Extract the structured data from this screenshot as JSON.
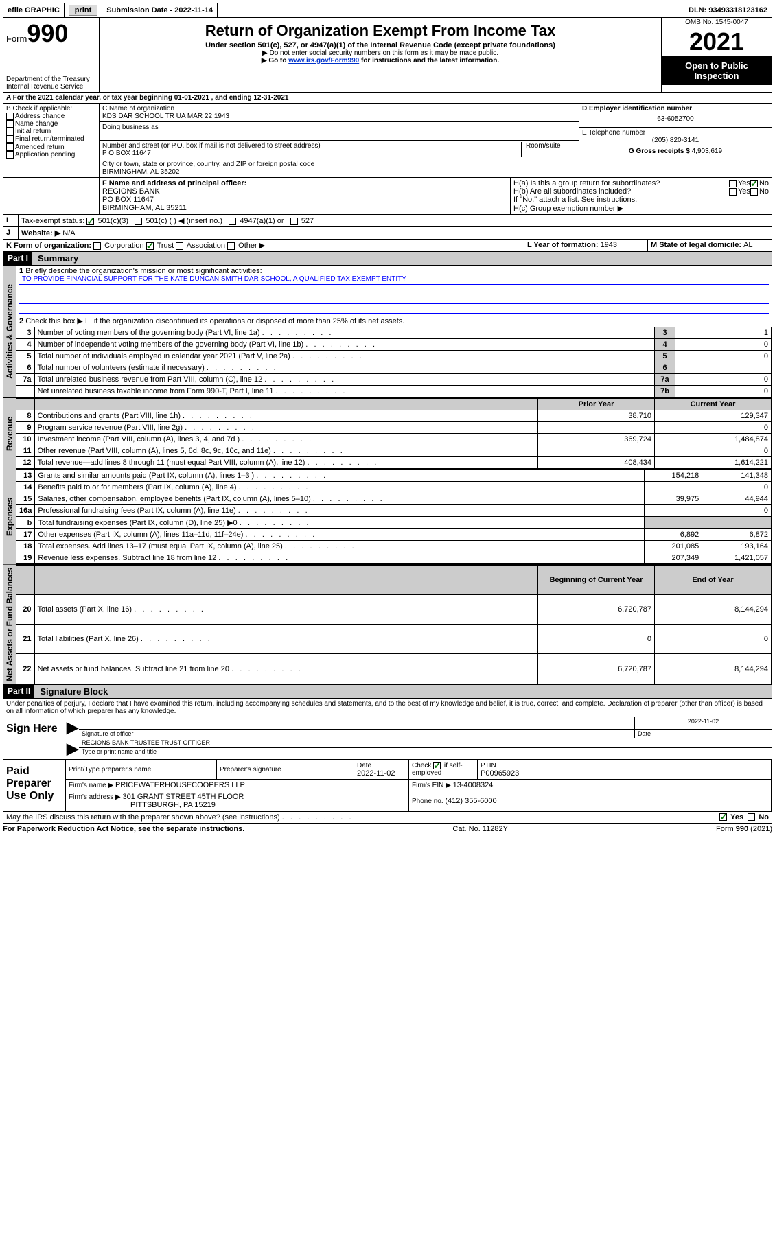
{
  "topbar": {
    "efile": "efile GRAPHIC",
    "print": "print",
    "subdate_label": "Submission Date - ",
    "subdate": "2022-11-14",
    "dln_label": "DLN: ",
    "dln": "93493318123162"
  },
  "header": {
    "form_word": "Form",
    "form_num": "990",
    "dept": "Department of the Treasury",
    "irs": "Internal Revenue Service",
    "title": "Return of Organization Exempt From Income Tax",
    "sub1": "Under section 501(c), 527, or 4947(a)(1) of the Internal Revenue Code (except private foundations)",
    "sub2": "▶ Do not enter social security numbers on this form as it may be made public.",
    "sub3a": "▶ Go to ",
    "sub3_link": "www.irs.gov/Form990",
    "sub3b": " for instructions and the latest information.",
    "omb": "OMB No. 1545-0047",
    "year": "2021",
    "open": "Open to Public Inspection"
  },
  "A": {
    "prefix": "A For the 2021 calendar year, or tax year beginning ",
    "begin": "01-01-2021",
    "mid": " , and ending ",
    "end": "12-31-2021"
  },
  "B": {
    "label": "B Check if applicable:",
    "items": [
      "Address change",
      "Name change",
      "Initial return",
      "Final return/terminated",
      "Amended return",
      "Application pending"
    ]
  },
  "C": {
    "name_label": "C Name of organization",
    "name": "KDS DAR SCHOOL TR UA MAR 22 1943",
    "dba_label": "Doing business as",
    "addr_label": "Number and street (or P.O. box if mail is not delivered to street address)",
    "room_label": "Room/suite",
    "addr": "P O BOX 11647",
    "city_label": "City or town, state or province, country, and ZIP or foreign postal code",
    "city": "BIRMINGHAM, AL  35202"
  },
  "D": {
    "label": "D Employer identification number",
    "val": "63-6052700"
  },
  "E": {
    "label": "E Telephone number",
    "val": "(205) 820-3141"
  },
  "G": {
    "label": "G Gross receipts $ ",
    "val": "4,903,619"
  },
  "F": {
    "label": "F  Name and address of principal officer:",
    "lines": [
      "REGIONS BANK",
      "PO BOX 11647",
      "BIRMINGHAM, AL  35211"
    ]
  },
  "H": {
    "a": "H(a)  Is this a group return for subordinates?",
    "b": "H(b)  Are all subordinates included?",
    "note": "If \"No,\" attach a list. See instructions.",
    "c": "H(c)  Group exemption number ▶",
    "yes": "Yes",
    "no": "No"
  },
  "I": {
    "label": "Tax-exempt status:",
    "opts": [
      "501(c)(3)",
      "501(c) (  ) ◀ (insert no.)",
      "4947(a)(1) or",
      "527"
    ]
  },
  "J": {
    "label": "Website: ▶",
    "val": "N/A"
  },
  "K": {
    "label": "K Form of organization:",
    "opts": [
      "Corporation",
      "Trust",
      "Association",
      "Other ▶"
    ]
  },
  "L": {
    "label": "L Year of formation: ",
    "val": "1943"
  },
  "M": {
    "label": "M State of legal domicile: ",
    "val": "AL"
  },
  "part1": {
    "hdr": "Part I",
    "title": "Summary"
  },
  "mission": {
    "q1": "Briefly describe the organization's mission or most significant activities:",
    "text": "TO PROVIDE FINANCIAL SUPPORT FOR THE KATE DUNCAN SMITH DAR SCHOOL, A QUALIFIED TAX EXEMPT ENTITY"
  },
  "gov_lines": {
    "l2": "Check this box ▶ ☐  if the organization discontinued its operations or disposed of more than 25% of its net assets.",
    "rows": [
      {
        "n": "3",
        "t": "Number of voting members of the governing body (Part VI, line 1a)",
        "box": "3",
        "v": "1"
      },
      {
        "n": "4",
        "t": "Number of independent voting members of the governing body (Part VI, line 1b)",
        "box": "4",
        "v": "0"
      },
      {
        "n": "5",
        "t": "Total number of individuals employed in calendar year 2021 (Part V, line 2a)",
        "box": "5",
        "v": "0"
      },
      {
        "n": "6",
        "t": "Total number of volunteers (estimate if necessary)",
        "box": "6",
        "v": ""
      },
      {
        "n": "7a",
        "t": "Total unrelated business revenue from Part VIII, column (C), line 12",
        "box": "7a",
        "v": "0"
      },
      {
        "n": "",
        "t": "Net unrelated business taxable income from Form 990-T, Part I, line 11",
        "box": "7b",
        "v": "0"
      }
    ]
  },
  "cols": {
    "prior": "Prior Year",
    "current": "Current Year",
    "boc": "Beginning of Current Year",
    "eoy": "End of Year"
  },
  "revenue": [
    {
      "n": "8",
      "t": "Contributions and grants (Part VIII, line 1h)",
      "p": "38,710",
      "c": "129,347"
    },
    {
      "n": "9",
      "t": "Program service revenue (Part VIII, line 2g)",
      "p": "",
      "c": "0"
    },
    {
      "n": "10",
      "t": "Investment income (Part VIII, column (A), lines 3, 4, and 7d )",
      "p": "369,724",
      "c": "1,484,874"
    },
    {
      "n": "11",
      "t": "Other revenue (Part VIII, column (A), lines 5, 6d, 8c, 9c, 10c, and 11e)",
      "p": "",
      "c": "0"
    },
    {
      "n": "12",
      "t": "Total revenue—add lines 8 through 11 (must equal Part VIII, column (A), line 12)",
      "p": "408,434",
      "c": "1,614,221"
    }
  ],
  "expenses": [
    {
      "n": "13",
      "t": "Grants and similar amounts paid (Part IX, column (A), lines 1–3 )",
      "p": "154,218",
      "c": "141,348"
    },
    {
      "n": "14",
      "t": "Benefits paid to or for members (Part IX, column (A), line 4)",
      "p": "",
      "c": "0"
    },
    {
      "n": "15",
      "t": "Salaries, other compensation, employee benefits (Part IX, column (A), lines 5–10)",
      "p": "39,975",
      "c": "44,944"
    },
    {
      "n": "16a",
      "t": "Professional fundraising fees (Part IX, column (A), line 11e)",
      "p": "",
      "c": "0"
    },
    {
      "n": "b",
      "t": "Total fundraising expenses (Part IX, column (D), line 25) ▶0",
      "p": "shade",
      "c": "shade"
    },
    {
      "n": "17",
      "t": "Other expenses (Part IX, column (A), lines 11a–11d, 11f–24e)",
      "p": "6,892",
      "c": "6,872"
    },
    {
      "n": "18",
      "t": "Total expenses. Add lines 13–17 (must equal Part IX, column (A), line 25)",
      "p": "201,085",
      "c": "193,164"
    },
    {
      "n": "19",
      "t": "Revenue less expenses. Subtract line 18 from line 12",
      "p": "207,349",
      "c": "1,421,057"
    }
  ],
  "netassets": [
    {
      "n": "20",
      "t": "Total assets (Part X, line 16)",
      "p": "6,720,787",
      "c": "8,144,294"
    },
    {
      "n": "21",
      "t": "Total liabilities (Part X, line 26)",
      "p": "0",
      "c": "0"
    },
    {
      "n": "22",
      "t": "Net assets or fund balances. Subtract line 21 from line 20",
      "p": "6,720,787",
      "c": "8,144,294"
    }
  ],
  "vtabs": {
    "gov": "Activities & Governance",
    "rev": "Revenue",
    "exp": "Expenses",
    "net": "Net Assets or Fund Balances"
  },
  "part2": {
    "hdr": "Part II",
    "title": "Signature Block"
  },
  "penalty": "Under penalties of perjury, I declare that I have examined this return, including accompanying schedules and statements, and to the best of my knowledge and belief, it is true, correct, and complete. Declaration of preparer (other than officer) is based on all information of which preparer has any knowledge.",
  "sign": {
    "here": "Sign Here",
    "sig_of_officer": "Signature of officer",
    "date": "Date",
    "date_val": "2022-11-02",
    "name_title": "REGIONS BANK TRUSTEE  TRUST OFFICER",
    "name_label": "Type or print name and title"
  },
  "paid": {
    "label": "Paid Preparer Use Only",
    "prep_name_label": "Print/Type preparer's name",
    "prep_sig_label": "Preparer's signature",
    "date_label": "Date",
    "date": "2022-11-02",
    "check_label": "Check ☑ if self-employed",
    "ptin_label": "PTIN",
    "ptin": "P00965923",
    "firm_name_label": "Firm's name    ▶ ",
    "firm_name": "PRICEWATERHOUSECOOPERS LLP",
    "firm_ein_label": "Firm's EIN ▶ ",
    "firm_ein": "13-4008324",
    "firm_addr_label": "Firm's address ▶ ",
    "firm_addr1": "301 GRANT STREET 45TH FLOOR",
    "firm_addr2": "PITTSBURGH, PA  15219",
    "phone_label": "Phone no. ",
    "phone": "(412) 355-6000"
  },
  "discuss": {
    "q": "May the IRS discuss this return with the preparer shown above? (see instructions)",
    "yes": "Yes",
    "no": "No"
  },
  "footer": {
    "pra": "For Paperwork Reduction Act Notice, see the separate instructions.",
    "cat": "Cat. No. 11282Y",
    "form": "Form 990 (2021)"
  }
}
